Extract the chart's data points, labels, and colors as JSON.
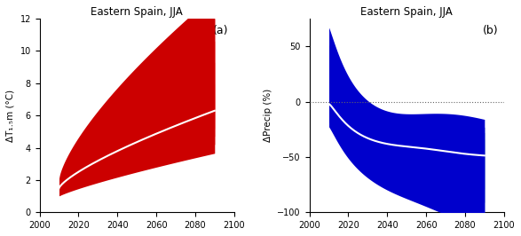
{
  "title_a": "Eastern Spain, JJA",
  "title_b": "Eastern Spain, JJA",
  "label_a": "(a)",
  "label_b": "(b)",
  "ylabel_a": "ΔT₁.₅m (°C)",
  "ylabel_b": "ΔPrecip (%)",
  "xlim": [
    2000,
    2100
  ],
  "ylim_a": [
    0,
    12
  ],
  "ylim_b": [
    -100,
    75
  ],
  "yticks_a": [
    0,
    2,
    4,
    6,
    8,
    10,
    12
  ],
  "yticks_b": [
    -100,
    -50,
    0,
    50
  ],
  "xticks": [
    2000,
    2020,
    2040,
    2060,
    2080,
    2100
  ],
  "red_colors": [
    "#FFCCCC",
    "#FF9999",
    "#FF5555",
    "#EE0000",
    "#CC0000"
  ],
  "blue_colors": [
    "#DDEEFF",
    "#AABBDD",
    "#7799CC",
    "#3355BB",
    "#0000CC"
  ],
  "white_line_color": "#FFFFFF",
  "dotted_line_color": "#666666"
}
